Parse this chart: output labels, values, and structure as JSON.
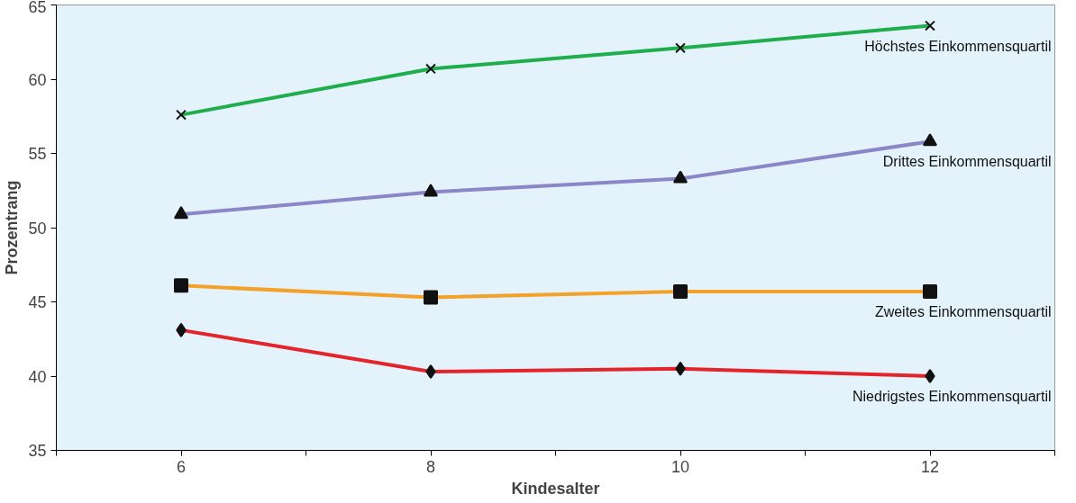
{
  "chart_data": {
    "type": "line",
    "xlabel": "Kindesalter",
    "ylabel": "Prozentrang",
    "x": [
      6,
      8,
      10,
      12
    ],
    "xlim": [
      5,
      13
    ],
    "xticks": [
      {
        "value": 5,
        "label": null
      },
      6,
      {
        "value": 7,
        "label": null
      },
      8,
      {
        "value": 9,
        "label": null
      },
      10,
      {
        "value": 11,
        "label": null
      },
      12,
      {
        "value": 13,
        "label": null
      }
    ],
    "ylim": [
      35,
      65
    ],
    "yticks": [
      35,
      40,
      45,
      50,
      55,
      60,
      65
    ],
    "grid": false,
    "legend": false,
    "line_style": "solid",
    "series": [
      {
        "name": "Höchstes Einkommensquartil",
        "color": "#1fae4b",
        "marker": "cross",
        "values": [
          57.6,
          60.7,
          62.1,
          63.6
        ]
      },
      {
        "name": "Drittes Einkommensquartil",
        "color": "#8a86c8",
        "marker": "triangle",
        "values": [
          50.9,
          52.4,
          53.3,
          55.8
        ]
      },
      {
        "name": "Zweites Einkommensquartil",
        "color": "#f4a12a",
        "marker": "square",
        "values": [
          46.1,
          45.3,
          45.7,
          45.7
        ]
      },
      {
        "name": "Niedrigstes Einkommensquartil",
        "color": "#e3242b",
        "marker": "diamond",
        "values": [
          43.1,
          40.3,
          40.5,
          40.0
        ]
      }
    ]
  }
}
